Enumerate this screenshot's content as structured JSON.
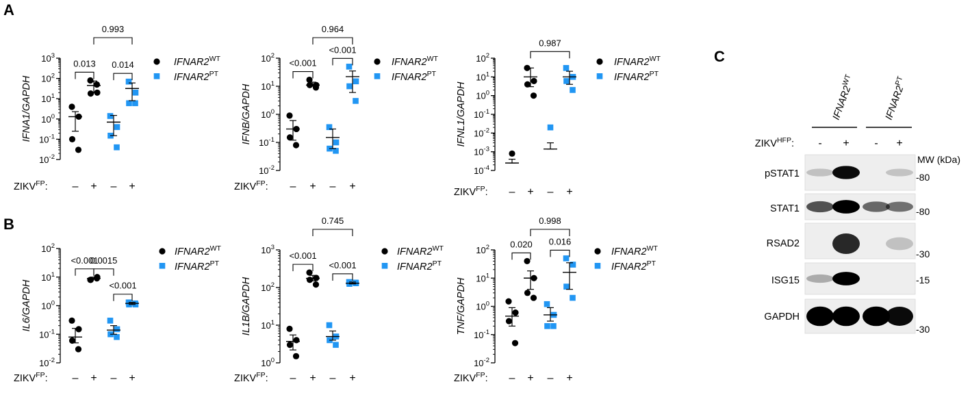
{
  "figure": {
    "panel_letters": [
      "A",
      "B",
      "C"
    ],
    "legend": {
      "wt": {
        "gene": "IFNAR2",
        "sup": "WT",
        "color": "#000000",
        "marker": "circle"
      },
      "pt": {
        "gene": "IFNAR2",
        "sup": "PT",
        "color": "#2196f3",
        "marker": "square"
      }
    },
    "xlabel": {
      "main": "ZIKV",
      "sup": "FP",
      "suffix": ":"
    },
    "x_signs": [
      "–",
      "+",
      "–",
      "+"
    ]
  },
  "chart_data": [
    {
      "type": "scatter",
      "panel": "A",
      "yscale": "log",
      "ylabel": "IFNA1/GAPDH",
      "ylim_exp": [
        -2,
        3
      ],
      "groups": [
        {
          "series": "IFNAR2 WT",
          "zikv": "–",
          "values": [
            4,
            1.3,
            0.1,
            0.03
          ],
          "mean": 1.3,
          "sem_low": 0.25,
          "sem_high": 2.3
        },
        {
          "series": "IFNAR2 WT",
          "zikv": "+",
          "values": [
            80,
            20,
            18,
            50
          ],
          "mean": 45,
          "sem_low": 20,
          "sem_high": 75
        },
        {
          "series": "IFNAR2 PT",
          "zikv": "–",
          "values": [
            1.4,
            0.4,
            0.15,
            0.04
          ],
          "mean": 0.7,
          "sem_low": 0.15,
          "sem_high": 1.5
        },
        {
          "series": "IFNAR2 PT",
          "zikv": "+",
          "values": [
            70,
            20,
            6,
            6
          ],
          "mean": 32,
          "sem_low": 8,
          "sem_high": 60
        }
      ],
      "comparisons": [
        {
          "groups": [
            0,
            1
          ],
          "p": "0.013"
        },
        {
          "groups": [
            2,
            3
          ],
          "p": "0.014"
        },
        {
          "groups": [
            1,
            3
          ],
          "p": "0.993"
        }
      ]
    },
    {
      "type": "scatter",
      "panel": "A",
      "yscale": "log",
      "ylabel": "IFNB/GAPDH",
      "ylim_exp": [
        -2,
        2
      ],
      "groups": [
        {
          "series": "IFNAR2 WT",
          "zikv": "–",
          "values": [
            0.9,
            0.3,
            0.15,
            0.08
          ],
          "mean": 0.3,
          "sem_low": 0.12,
          "sem_high": 0.6
        },
        {
          "series": "IFNAR2 WT",
          "zikv": "+",
          "values": [
            17,
            11,
            11,
            9
          ],
          "mean": 11,
          "sem_low": 10,
          "sem_high": 14
        },
        {
          "series": "IFNAR2 PT",
          "zikv": "–",
          "values": [
            0.35,
            0.1,
            0.06,
            0.05
          ],
          "mean": 0.15,
          "sem_low": 0.06,
          "sem_high": 0.3
        },
        {
          "series": "IFNAR2 PT",
          "zikv": "+",
          "values": [
            50,
            15,
            10,
            3
          ],
          "mean": 22,
          "sem_low": 6,
          "sem_high": 35
        }
      ],
      "comparisons": [
        {
          "groups": [
            0,
            1
          ],
          "p": "<0.001"
        },
        {
          "groups": [
            2,
            3
          ],
          "p": "<0.001"
        },
        {
          "groups": [
            1,
            3
          ],
          "p": "0.964"
        }
      ]
    },
    {
      "type": "scatter",
      "panel": "A",
      "yscale": "log",
      "ylabel": "IFNL1/GAPDH",
      "ylim_exp": [
        -4,
        2
      ],
      "groups": [
        {
          "series": "IFNAR2 WT",
          "zikv": "–",
          "values": [
            0.0008
          ],
          "mean": 0.00025,
          "sem_low": 0.00025,
          "sem_high": 0.0004
        },
        {
          "series": "IFNAR2 WT",
          "zikv": "+",
          "values": [
            30,
            6,
            4,
            1
          ],
          "mean": 10,
          "sem_low": 3,
          "sem_high": 30
        },
        {
          "series": "IFNAR2 PT",
          "zikv": "–",
          "values": [
            0.02
          ],
          "mean": 0.0014,
          "sem_low": 0.0014,
          "sem_high": 0.003
        },
        {
          "series": "IFNAR2 PT",
          "zikv": "+",
          "values": [
            30,
            10,
            6,
            2
          ],
          "mean": 10,
          "sem_low": 4,
          "sem_high": 20
        }
      ],
      "comparisons": [
        {
          "groups": [
            1,
            3
          ],
          "p": "0.987"
        }
      ]
    },
    {
      "type": "scatter",
      "panel": "B",
      "yscale": "log",
      "ylabel": "IL6/GAPDH",
      "ylim_exp": [
        -2,
        2
      ],
      "groups": [
        {
          "series": "IFNAR2 WT",
          "zikv": "–",
          "values": [
            0.3,
            0.15,
            0.06,
            0.03
          ],
          "mean": 0.08,
          "sem_low": 0.05,
          "sem_high": 0.16
        },
        {
          "series": "IFNAR2 WT",
          "zikv": "+",
          "values": [
            8,
            10,
            8,
            9
          ],
          "mean": 9,
          "sem_low": 8.5,
          "sem_high": 10
        },
        {
          "series": "IFNAR2 PT",
          "zikv": "–",
          "values": [
            0.3,
            0.15,
            0.1,
            0.08
          ],
          "mean": 0.14,
          "sem_low": 0.1,
          "sem_high": 0.2
        },
        {
          "series": "IFNAR2 PT",
          "zikv": "+",
          "values": [
            1.3,
            1.1,
            1.1,
            1.2
          ],
          "mean": 1.2,
          "sem_low": 1.1,
          "sem_high": 1.3
        }
      ],
      "comparisons": [
        {
          "groups": [
            0,
            1
          ],
          "p": "<0.001"
        },
        {
          "groups": [
            1,
            2
          ],
          "p": "0.0015"
        },
        {
          "groups": [
            2,
            3
          ],
          "p": "<0.001"
        }
      ]
    },
    {
      "type": "scatter",
      "panel": "B",
      "yscale": "log",
      "ylabel": "IL1B/GAPDH",
      "ylim_exp": [
        0,
        3
      ],
      "groups": [
        {
          "series": "IFNAR2 WT",
          "zikv": "–",
          "values": [
            8,
            4,
            3,
            1.5
          ],
          "mean": 3.7,
          "sem_low": 2.2,
          "sem_high": 5.5
        },
        {
          "series": "IFNAR2 WT",
          "zikv": "+",
          "values": [
            250,
            180,
            160,
            120
          ],
          "mean": 175,
          "sem_low": 150,
          "sem_high": 210
        },
        {
          "series": "IFNAR2 PT",
          "zikv": "–",
          "values": [
            10,
            5,
            4,
            3
          ],
          "mean": 5,
          "sem_low": 4,
          "sem_high": 7
        },
        {
          "series": "IFNAR2 PT",
          "zikv": "+",
          "values": [
            140,
            130,
            125,
            135
          ],
          "mean": 130,
          "sem_low": 125,
          "sem_high": 140
        }
      ],
      "comparisons": [
        {
          "groups": [
            0,
            1
          ],
          "p": "<0.001"
        },
        {
          "groups": [
            2,
            3
          ],
          "p": "<0.001"
        },
        {
          "groups": [
            1,
            3
          ],
          "p": "0.745"
        }
      ]
    },
    {
      "type": "scatter",
      "panel": "B",
      "yscale": "log",
      "ylabel": "TNF/GAPDH",
      "ylim_exp": [
        -2,
        2
      ],
      "groups": [
        {
          "series": "IFNAR2 WT",
          "zikv": "–",
          "values": [
            1.5,
            0.6,
            0.3,
            0.05
          ],
          "mean": 0.45,
          "sem_low": 0.2,
          "sem_high": 0.9
        },
        {
          "series": "IFNAR2 WT",
          "zikv": "+",
          "values": [
            40,
            10,
            3,
            2
          ],
          "mean": 10,
          "sem_low": 4,
          "sem_high": 18
        },
        {
          "series": "IFNAR2 PT",
          "zikv": "–",
          "values": [
            1.2,
            0.5,
            0.2,
            0.2
          ],
          "mean": 0.5,
          "sem_low": 0.3,
          "sem_high": 0.9
        },
        {
          "series": "IFNAR2 PT",
          "zikv": "+",
          "values": [
            50,
            30,
            5,
            2
          ],
          "mean": 16,
          "sem_low": 4,
          "sem_high": 35
        }
      ],
      "comparisons": [
        {
          "groups": [
            0,
            1
          ],
          "p": "0.020"
        },
        {
          "groups": [
            2,
            3
          ],
          "p": "0.016"
        },
        {
          "groups": [
            1,
            3
          ],
          "p": "0.998"
        }
      ]
    }
  ],
  "blot": {
    "panel": "C",
    "column_groups": [
      {
        "gene": "IFNAR2",
        "sup": "WT"
      },
      {
        "gene": "IFNAR2",
        "sup": "PT"
      }
    ],
    "treatment": {
      "main": "ZIKV",
      "sup": "HFP",
      "suffix": ":"
    },
    "lane_signs": [
      "-",
      "+",
      "-",
      "+"
    ],
    "mw_header": "MW (kDa)",
    "rows": [
      {
        "label": "pSTAT1",
        "mw": "-80",
        "intensity": [
          0.05,
          0.95,
          0.0,
          0.03
        ]
      },
      {
        "label": "STAT1",
        "mw": "-80",
        "intensity": [
          0.6,
          1.0,
          0.5,
          0.45
        ]
      },
      {
        "label": "RSAD2",
        "mw": "-30",
        "intensity": [
          0.0,
          0.8,
          0.0,
          0.05
        ]
      },
      {
        "label": "ISG15",
        "mw": "-15",
        "intensity": [
          0.15,
          1.0,
          0.0,
          0.0
        ]
      },
      {
        "label": "GAPDH",
        "mw": "-30",
        "intensity": [
          1.0,
          1.0,
          1.0,
          0.95
        ]
      }
    ]
  }
}
